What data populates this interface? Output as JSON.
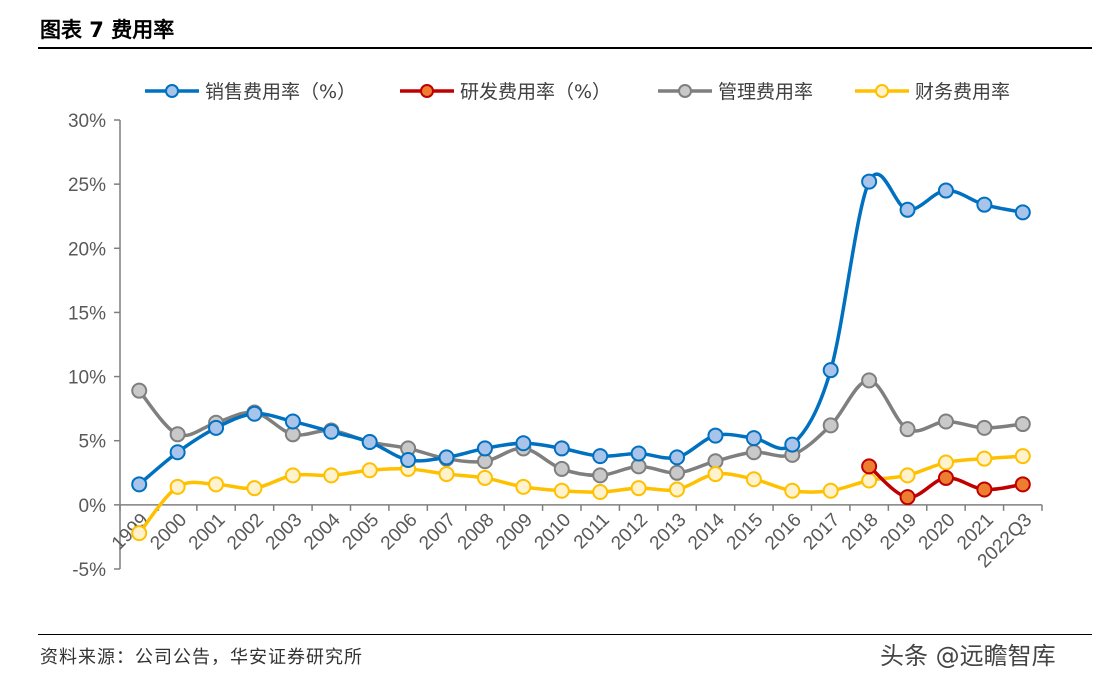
{
  "header": {
    "title": "图表 7 费用率"
  },
  "footer": {
    "source": "资料来源：公司公告，华安证券研究所",
    "watermark": "头条 @远瞻智库"
  },
  "chart_data": {
    "type": "line",
    "title": "",
    "xlabel": "",
    "ylabel": "",
    "ylim": [
      -5,
      30
    ],
    "yticks": [
      "-5%",
      "0%",
      "5%",
      "10%",
      "15%",
      "20%",
      "25%",
      "30%"
    ],
    "ytick_values": [
      -5,
      0,
      5,
      10,
      15,
      20,
      25,
      30
    ],
    "grid": false,
    "legend": "top",
    "categories": [
      "1999",
      "2000",
      "2001",
      "2002",
      "2003",
      "2004",
      "2005",
      "2006",
      "2007",
      "2008",
      "2009",
      "2010",
      "2011",
      "2012",
      "2013",
      "2014",
      "2015",
      "2016",
      "2017",
      "2018",
      "2019",
      "2020",
      "2021",
      "2022Q3"
    ],
    "series": [
      {
        "name": "销售费用率（%）",
        "color": "#0070C0",
        "fill": "#A9C4EB",
        "values": [
          1.6,
          4.1,
          6.0,
          7.1,
          6.5,
          5.7,
          4.9,
          3.5,
          3.7,
          4.4,
          4.8,
          4.4,
          3.8,
          4.0,
          3.7,
          5.4,
          5.2,
          4.7,
          10.5,
          25.2,
          23.0,
          24.5,
          23.4,
          22.8
        ]
      },
      {
        "name": "研发费用率（%）",
        "color": "#C00000",
        "fill": "#ED7D31",
        "values": [
          null,
          null,
          null,
          null,
          null,
          null,
          null,
          null,
          null,
          null,
          null,
          null,
          null,
          null,
          null,
          null,
          null,
          null,
          null,
          3.0,
          0.6,
          2.1,
          1.2,
          1.6
        ]
      },
      {
        "name": "管理费用率",
        "color": "#7F7F7F",
        "fill": "#C9C9C9",
        "values": [
          8.9,
          5.5,
          6.4,
          7.2,
          5.5,
          5.8,
          4.9,
          4.4,
          3.6,
          3.4,
          4.4,
          2.8,
          2.3,
          3.0,
          2.5,
          3.4,
          4.1,
          3.9,
          6.2,
          9.7,
          5.9,
          6.5,
          6.0,
          6.3
        ]
      },
      {
        "name": "财务费用率",
        "color": "#FFC000",
        "fill": "#FFF2CC",
        "values": [
          -2.2,
          1.4,
          1.6,
          1.3,
          2.3,
          2.3,
          2.7,
          2.8,
          2.4,
          2.1,
          1.4,
          1.1,
          1.0,
          1.3,
          1.2,
          2.4,
          2.0,
          1.1,
          1.1,
          1.9,
          2.3,
          3.3,
          3.6,
          3.8
        ]
      }
    ]
  }
}
